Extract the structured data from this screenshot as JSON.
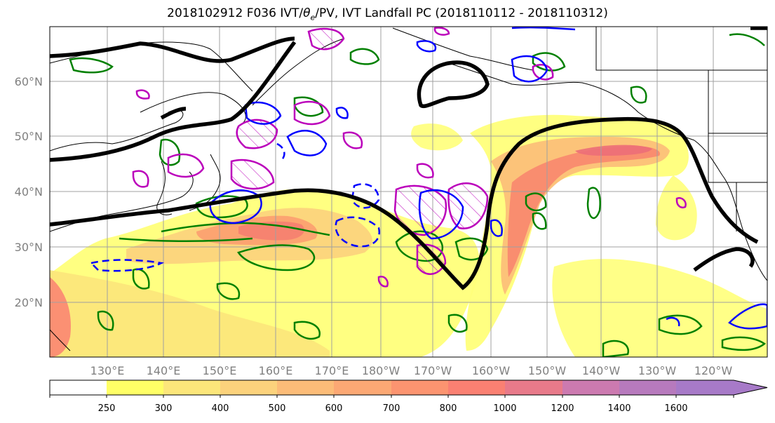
{
  "title": {
    "prefix": "2018102912 F036 IVT/",
    "theta": "θ",
    "theta_sub": "e",
    "suffix": "/PV, IVT Landfall PC (2018110112 - 2018110312)"
  },
  "lat_labels": [
    "60°N",
    "50°N",
    "40°N",
    "30°N",
    "20°N"
  ],
  "lon_labels": [
    "130°E",
    "140°E",
    "150°E",
    "160°E",
    "170°E",
    "180°W",
    "170°W",
    "160°W",
    "150°W",
    "140°W",
    "130°W",
    "120°W"
  ],
  "colorbar": {
    "labels": [
      "250",
      "300",
      "400",
      "500",
      "600",
      "700",
      "800",
      "1000",
      "1200",
      "1400",
      "1600"
    ],
    "colors": [
      "#ffffff",
      "#ffff66",
      "#fce67a",
      "#fcd27c",
      "#fcbc78",
      "#fca874",
      "#fc9470",
      "#fa8072",
      "#e87a8a",
      "#cc7ab0",
      "#a77ac8"
    ]
  },
  "contour_colors": {
    "ivt_landfall_pc": "#000000",
    "theta_e": "#008000",
    "pv": "#bb00bb",
    "ivt_negative": "#0000ff"
  }
}
